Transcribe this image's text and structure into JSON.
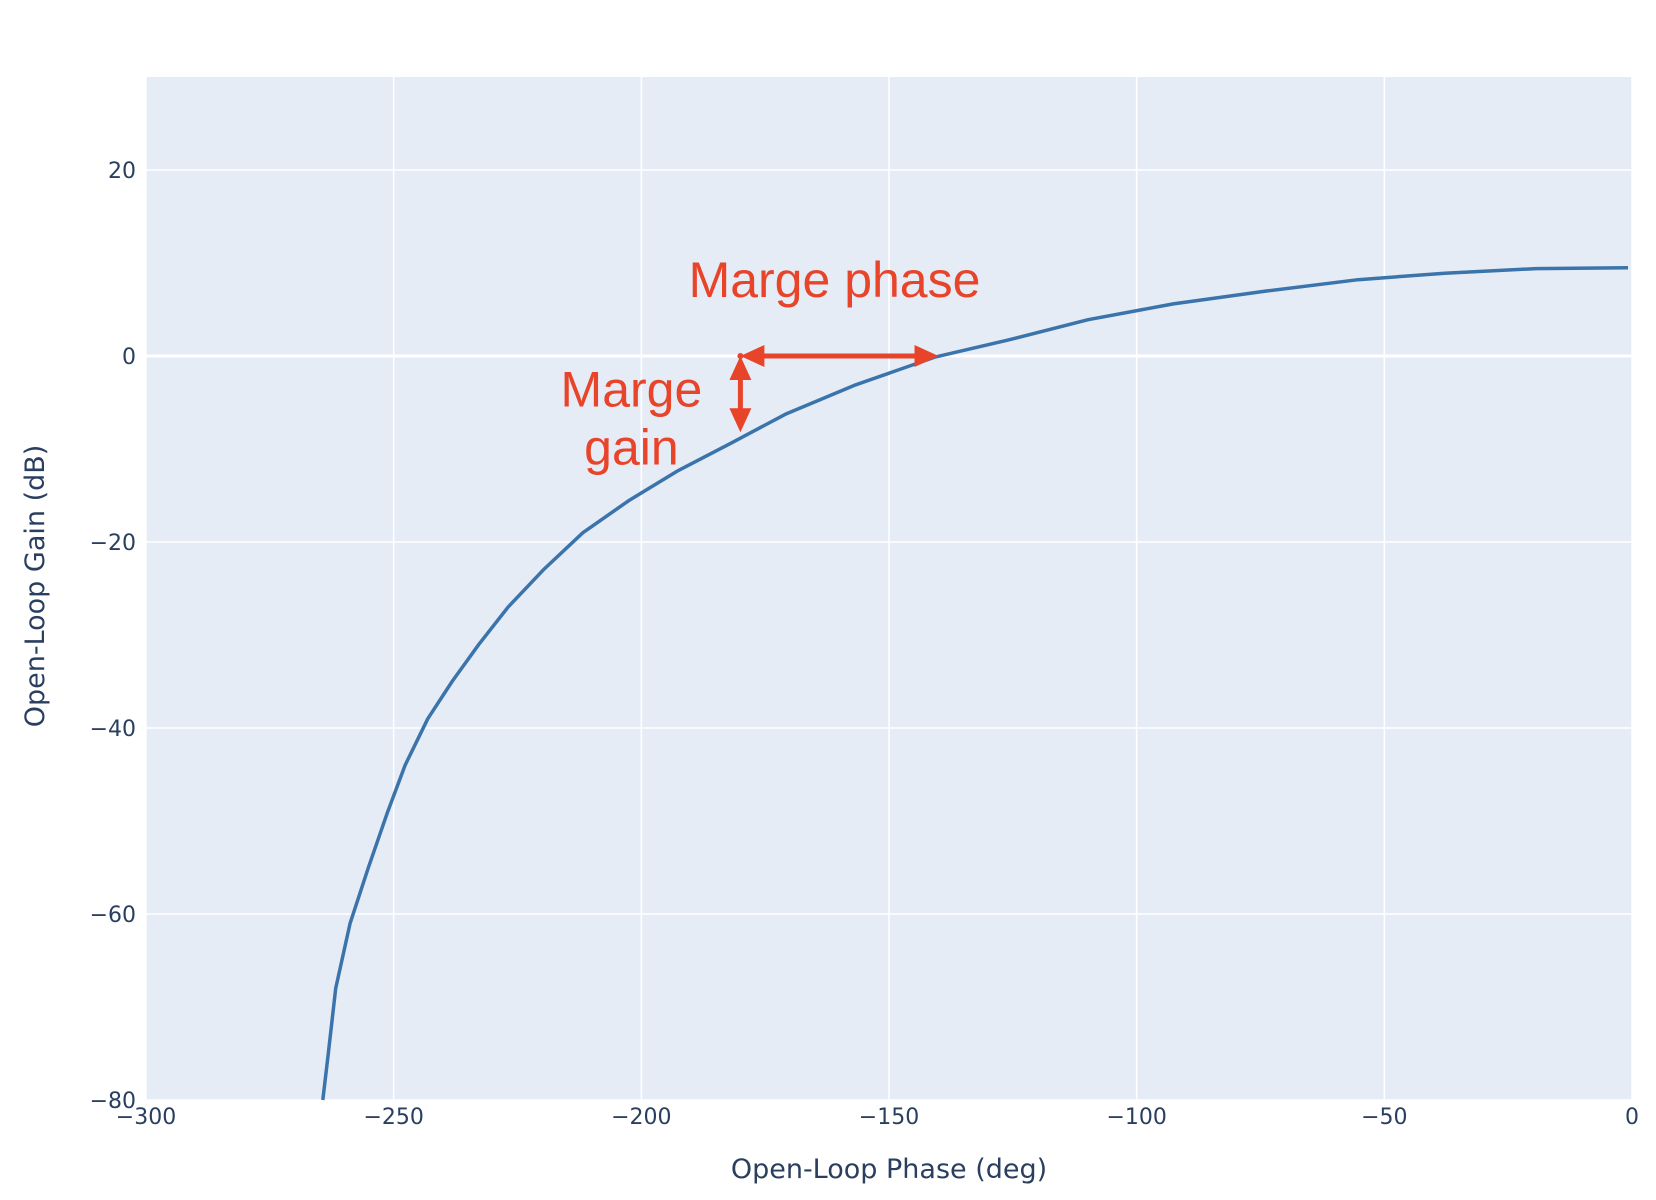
{
  "chart_data": {
    "type": "line",
    "title": "",
    "xlabel": "Open-Loop Phase (deg)",
    "ylabel": "Open-Loop Gain (dB)",
    "xlim": [
      -300,
      0
    ],
    "ylim": [
      -80,
      30
    ],
    "x_ticks": [
      -300,
      -250,
      -200,
      -150,
      -100,
      -50,
      0
    ],
    "x_tick_labels": [
      "−300",
      "−250",
      "−200",
      "−150",
      "−100",
      "−50",
      "0"
    ],
    "y_ticks": [
      -80,
      -60,
      -40,
      -20,
      0,
      20
    ],
    "y_tick_labels": [
      "−80",
      "−60",
      "−40",
      "−20",
      "0",
      "20"
    ],
    "grid": true,
    "zero_line": true,
    "background": "#e5ecf6",
    "series": [
      {
        "color": "#3a74ab",
        "x": [
          -264.3,
          -263.2,
          -261.7,
          -258.8,
          -255.1,
          -251.2,
          -247.7,
          -243.1,
          -238.2,
          -232.8,
          -226.9,
          -219.8,
          -211.8,
          -202.4,
          -192.5,
          -182.0,
          -170.7,
          -156.7,
          -140.6,
          -126.1,
          -109.8,
          -92.6,
          -73.6,
          -55.3,
          -37.8,
          -19.4,
          -0.8
        ],
        "y": [
          -80.0,
          -75.0,
          -68.0,
          -61.0,
          -55.0,
          -49.0,
          -44.0,
          -39.0,
          -35.0,
          -31.0,
          -27.0,
          -23.0,
          -19.0,
          -15.5,
          -12.3,
          -9.4,
          -6.2,
          -3.1,
          -0.1,
          1.7,
          3.9,
          5.6,
          7.0,
          8.2,
          8.9,
          9.4,
          9.5
        ]
      }
    ],
    "annotations": [
      {
        "text": "Marge phase",
        "x": -161,
        "y": 8.3
      },
      {
        "text_lines": [
          "Marge",
          "gain"
        ],
        "x": -202,
        "y": -6.5
      }
    ],
    "arrows": [
      {
        "name": "phase-margin-arrow",
        "from": [
          -180,
          0
        ],
        "to": [
          -140,
          0
        ],
        "double": true
      },
      {
        "name": "gain-margin-arrow",
        "from": [
          -180,
          0
        ],
        "to": [
          -180,
          -8.2
        ],
        "double": true
      }
    ],
    "annotation_color": "#e8442a"
  }
}
